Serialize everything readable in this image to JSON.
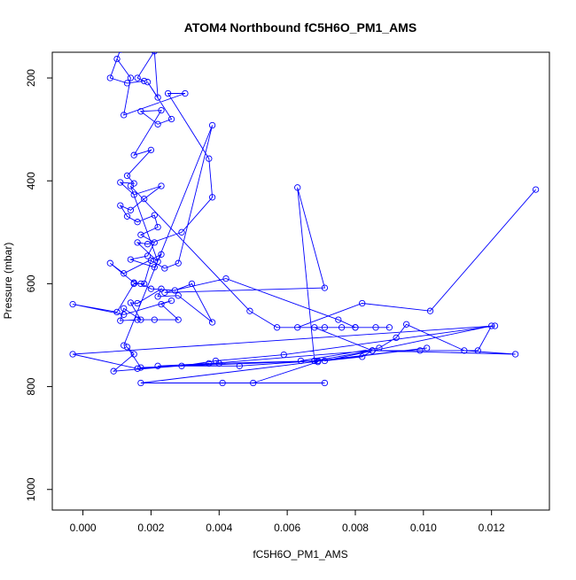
{
  "chart_data": {
    "type": "line",
    "title": "ATOM4 Northbound fC5H6O_PM1_AMS",
    "xlabel": "fC5H6O_PM1_AMS",
    "ylabel": "Pressure (mbar)",
    "xlim": [
      -0.0009,
      0.0137
    ],
    "ylim": [
      1040,
      150
    ],
    "y_reversed": true,
    "xticks": [
      0.0,
      0.002,
      0.004,
      0.006,
      0.008,
      0.01,
      0.012
    ],
    "xtick_labels": [
      "0.000",
      "0.002",
      "0.004",
      "0.006",
      "0.008",
      "0.010",
      "0.012"
    ],
    "yticks": [
      200,
      400,
      600,
      800,
      1000
    ],
    "ytick_labels": [
      "200",
      "400",
      "600",
      "800",
      "1000"
    ],
    "grid": false,
    "legend": "none",
    "color": "#0000ff",
    "series": [
      {
        "points": [
          [
            0.0133,
            417
          ],
          [
            0.0102,
            653
          ],
          [
            0.0082,
            638
          ],
          [
            0.0063,
            685
          ],
          [
            0.0071,
            685
          ],
          [
            0.009,
            685
          ],
          [
            0.0086,
            685
          ],
          [
            0.008,
            685
          ],
          [
            0.0076,
            685
          ],
          [
            0.0068,
            685
          ],
          [
            0.0085,
            730
          ],
          [
            0.0099,
            730
          ],
          [
            0.0116,
            730
          ],
          [
            0.012,
            682
          ],
          [
            0.0071,
            750
          ],
          [
            0.0082,
            742
          ],
          [
            0.0085,
            730
          ],
          [
            0.0127,
            737
          ],
          [
            0.0112,
            730
          ],
          [
            0.0095,
            679
          ],
          [
            0.0092,
            705
          ],
          [
            0.0087,
            725
          ],
          [
            0.0064,
            750
          ],
          [
            0.0069,
            752
          ],
          [
            0.005,
            793
          ],
          [
            0.0071,
            793
          ],
          [
            0.0041,
            793
          ],
          [
            0.0017,
            793
          ],
          [
            0.0101,
            725
          ],
          [
            0.0069,
            750
          ],
          [
            0.004,
            755
          ],
          [
            0.0016,
            765
          ],
          [
            -0.0003,
            737
          ],
          [
            0.0121,
            682
          ],
          [
            0.0059,
            738
          ],
          [
            0.0039,
            750
          ],
          [
            0.0029,
            760
          ],
          [
            0.0037,
            755
          ],
          [
            0.0022,
            760
          ],
          [
            0.0046,
            760
          ],
          [
            0.0068,
            750
          ],
          [
            0.0017,
            763
          ],
          [
            0.0013,
            723
          ],
          [
            0.0015,
            737
          ],
          [
            0.0009,
            770
          ],
          [
            0.0085,
            730
          ],
          [
            0.0068,
            750
          ],
          [
            0.0063,
            413
          ],
          [
            0.0071,
            608
          ],
          [
            0.0024,
            617
          ],
          [
            0.0042,
            590
          ],
          [
            0.0075,
            670
          ],
          [
            0.008,
            685
          ],
          [
            0.0057,
            685
          ],
          [
            0.0049,
            653
          ],
          [
            0.0014,
            410
          ],
          [
            0.0022,
            557
          ],
          [
            0.0016,
            520
          ],
          [
            0.0019,
            523
          ],
          [
            0.0029,
            500
          ],
          [
            0.0038,
            432
          ],
          [
            0.0037,
            357
          ],
          [
            0.0025,
            230
          ],
          [
            0.003,
            230
          ],
          [
            0.0012,
            272
          ],
          [
            0.0014,
            200
          ],
          [
            0.001,
            163
          ],
          [
            0.0011,
            145
          ],
          [
            0.0008,
            200
          ],
          [
            0.0013,
            210
          ],
          [
            0.0018,
            206
          ],
          [
            0.0016,
            200
          ],
          [
            0.0021,
            148
          ],
          [
            0.0022,
            238
          ],
          [
            0.0019,
            208
          ],
          [
            0.0026,
            280
          ],
          [
            0.0022,
            290
          ],
          [
            0.0017,
            265
          ],
          [
            0.0023,
            263
          ],
          [
            0.0015,
            350
          ],
          [
            0.002,
            340
          ],
          [
            0.0013,
            390
          ],
          [
            0.0015,
            405
          ],
          [
            0.0011,
            403
          ],
          [
            0.0015,
            427
          ],
          [
            0.0023,
            410
          ],
          [
            0.0018,
            435
          ],
          [
            0.0014,
            457
          ],
          [
            0.0011,
            448
          ],
          [
            0.0013,
            469
          ],
          [
            0.0016,
            480
          ],
          [
            0.0021,
            467
          ],
          [
            0.0022,
            490
          ],
          [
            0.0017,
            505
          ],
          [
            0.0021,
            520
          ],
          [
            0.0019,
            546
          ],
          [
            0.0014,
            553
          ],
          [
            0.0021,
            568
          ],
          [
            0.0023,
            543
          ],
          [
            0.0012,
            580
          ],
          [
            0.0008,
            560
          ],
          [
            0.0015,
            598
          ],
          [
            0.0017,
            600
          ],
          [
            0.002,
            610
          ],
          [
            0.0027,
            613
          ],
          [
            0.0032,
            600
          ],
          [
            0.0038,
            675
          ],
          [
            0.0028,
            623
          ],
          [
            0.0022,
            625
          ],
          [
            0.0023,
            610
          ],
          [
            0.0016,
            638
          ],
          [
            0.0014,
            637
          ],
          [
            0.0017,
            670
          ],
          [
            0.0012,
            648
          ],
          [
            0.0011,
            672
          ],
          [
            0.0016,
            670
          ],
          [
            0.0021,
            670
          ],
          [
            0.0028,
            670
          ],
          [
            0.0023,
            640
          ],
          [
            0.0026,
            633
          ],
          [
            0.0012,
            660
          ],
          [
            -0.0003,
            640
          ],
          [
            0.001,
            655
          ],
          [
            0.0015,
            600
          ],
          [
            0.0018,
            600
          ],
          [
            0.002,
            555
          ],
          [
            0.0024,
            570
          ],
          [
            0.0028,
            560
          ],
          [
            0.0038,
            292
          ],
          [
            0.0012,
            720
          ]
        ]
      }
    ]
  }
}
